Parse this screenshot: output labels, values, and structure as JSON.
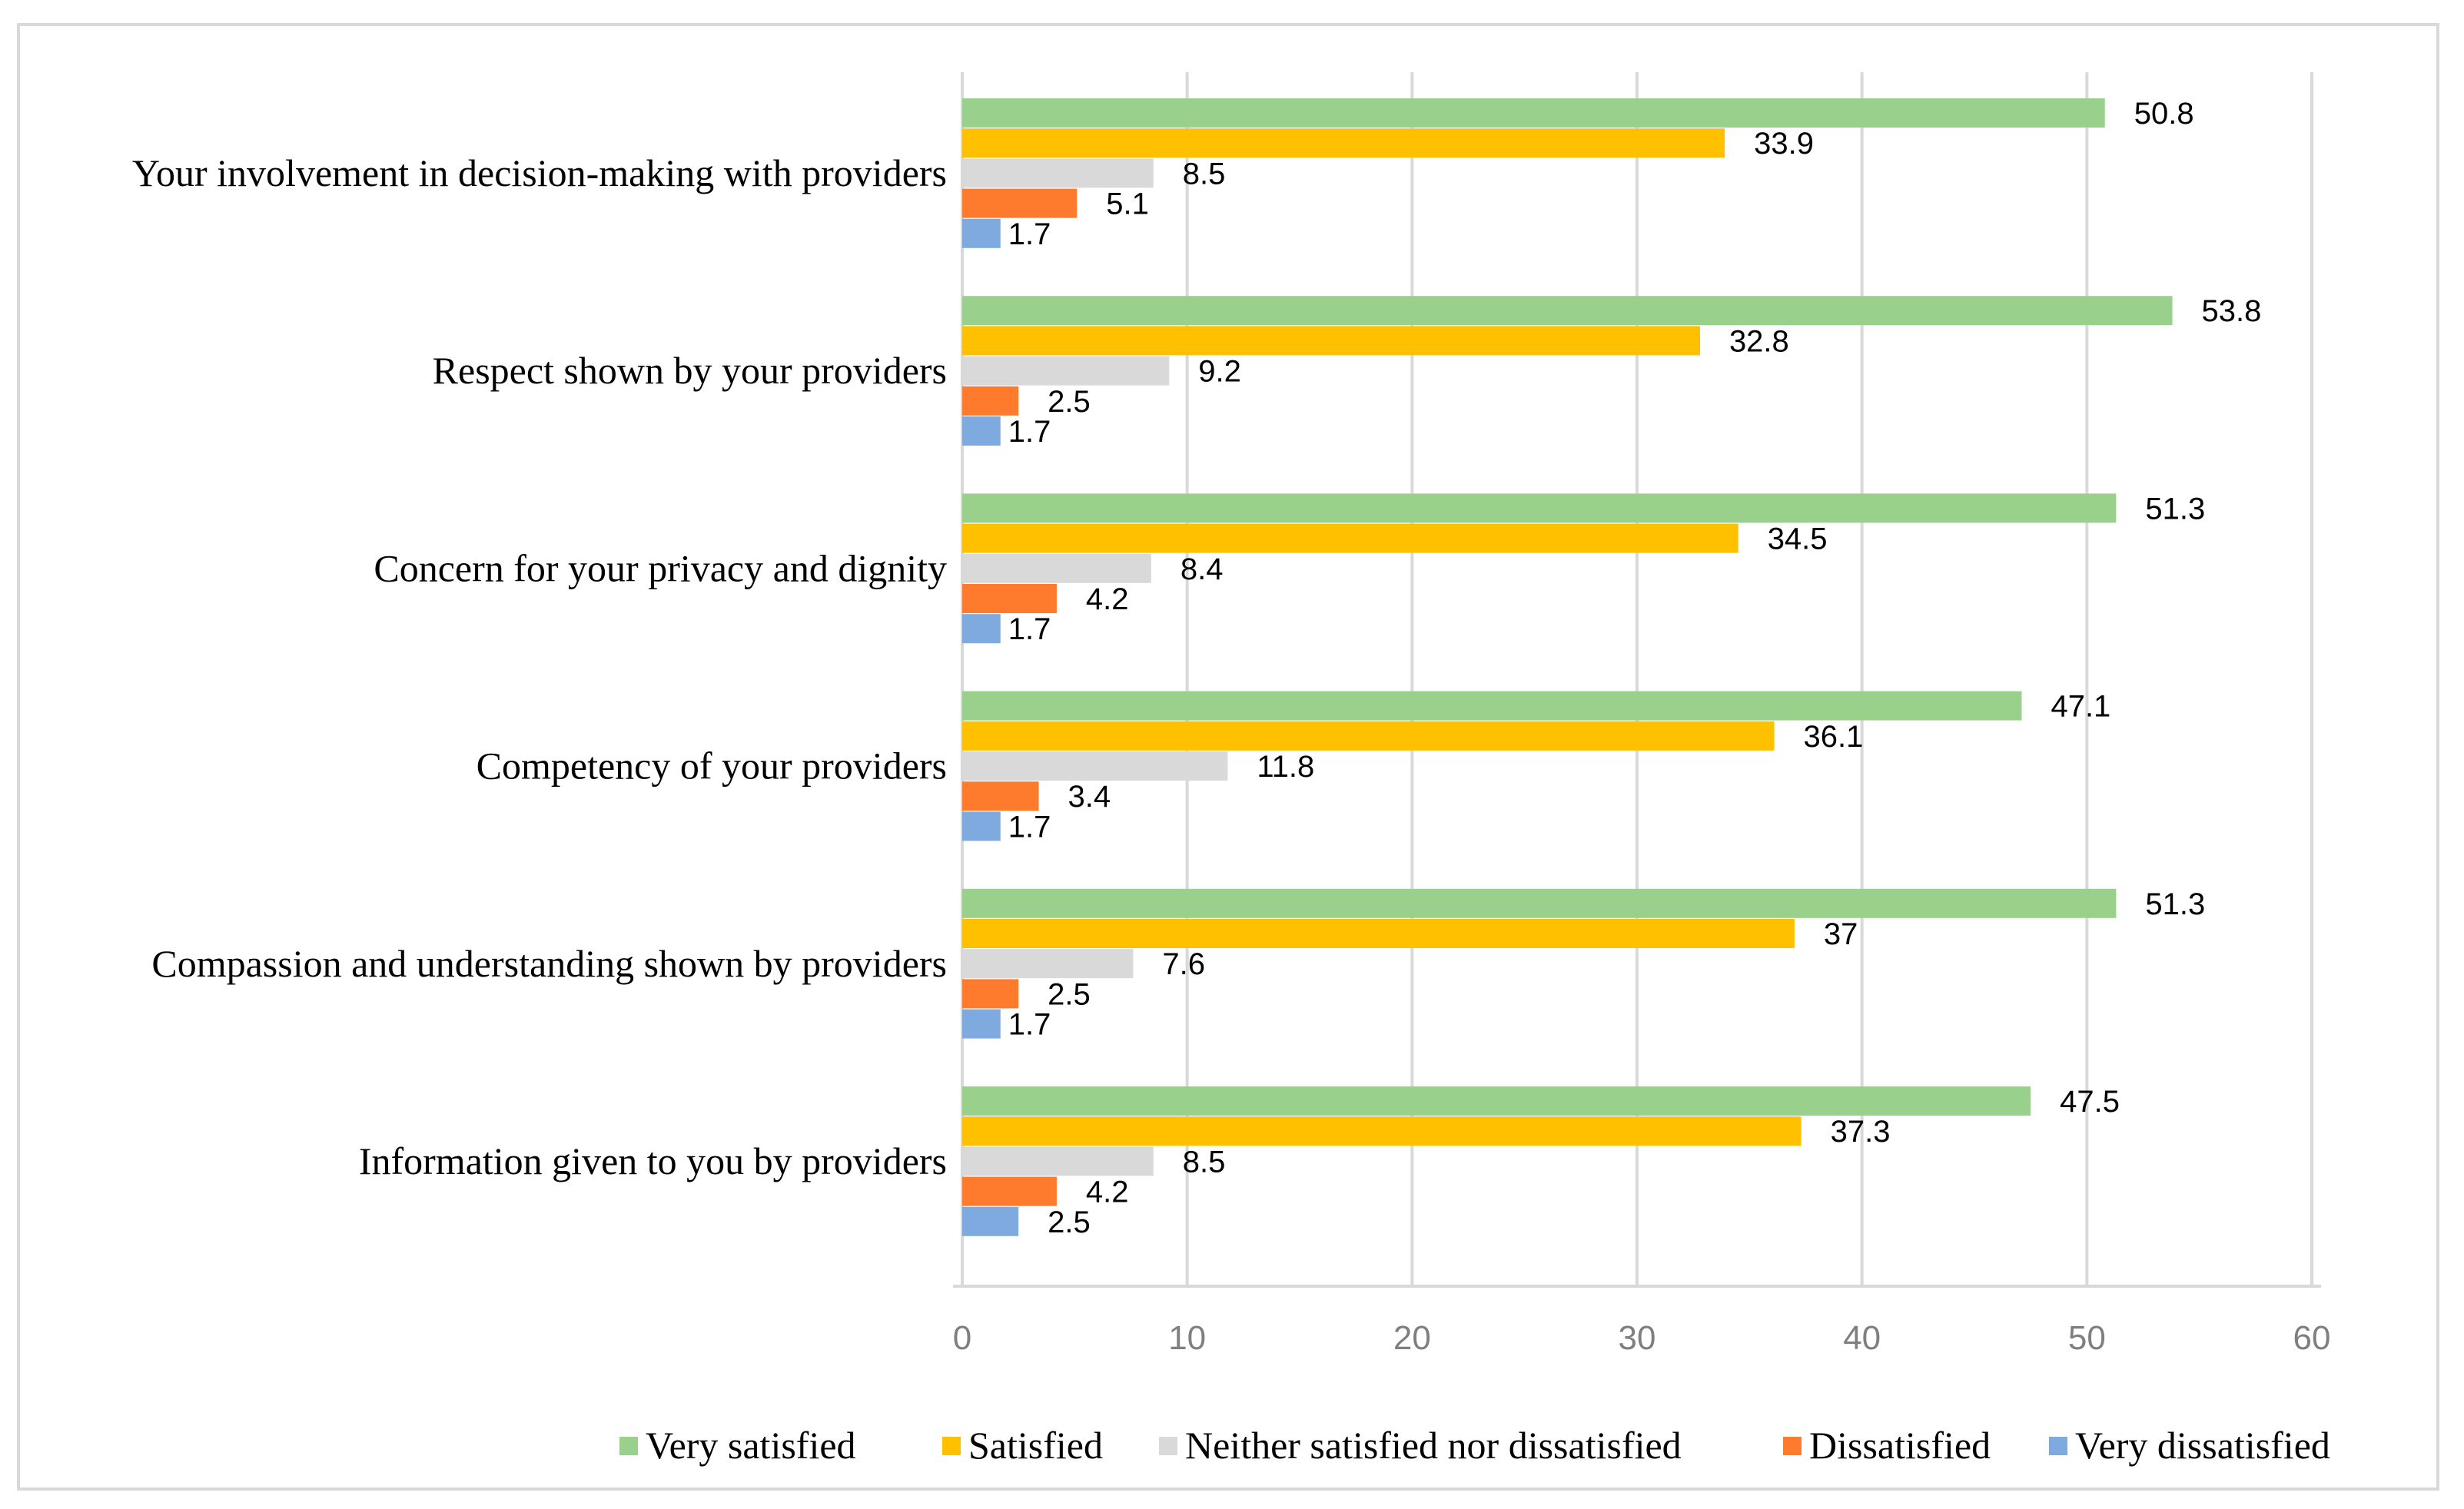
{
  "chart_data": {
    "type": "bar",
    "orientation": "horizontal",
    "title": "",
    "xlabel": "",
    "ylabel": "",
    "xlim": [
      0,
      60
    ],
    "ticks": [
      0,
      10,
      20,
      30,
      40,
      50,
      60
    ],
    "grid": true,
    "legend_position": "bottom",
    "categories": [
      "Your involvement in decision-making with providers",
      "Respect shown by your providers",
      "Concern for your privacy and dignity",
      "Competency of your providers",
      "Compassion and understanding shown by providers",
      "Information given to you by providers"
    ],
    "series": [
      {
        "name": "Very satisfied",
        "color": "#99d18c",
        "values": [
          50.8,
          53.8,
          51.3,
          47.1,
          51.3,
          47.5
        ]
      },
      {
        "name": "Satisfied",
        "color": "#ffc000",
        "values": [
          33.9,
          32.8,
          34.5,
          36.1,
          37,
          37.3
        ]
      },
      {
        "name": "Neither satisfied nor dissatisfied",
        "color": "#d9d9d9",
        "values": [
          8.5,
          9.2,
          8.4,
          11.8,
          7.6,
          8.5
        ]
      },
      {
        "name": "Dissatisfied",
        "color": "#fe7a2c",
        "values": [
          5.1,
          2.5,
          4.2,
          3.4,
          2.5,
          4.2
        ]
      },
      {
        "name": "Very dissatisfied",
        "color": "#7eaae0",
        "values": [
          1.7,
          1.7,
          1.7,
          1.7,
          1.7,
          2.5
        ]
      }
    ]
  }
}
